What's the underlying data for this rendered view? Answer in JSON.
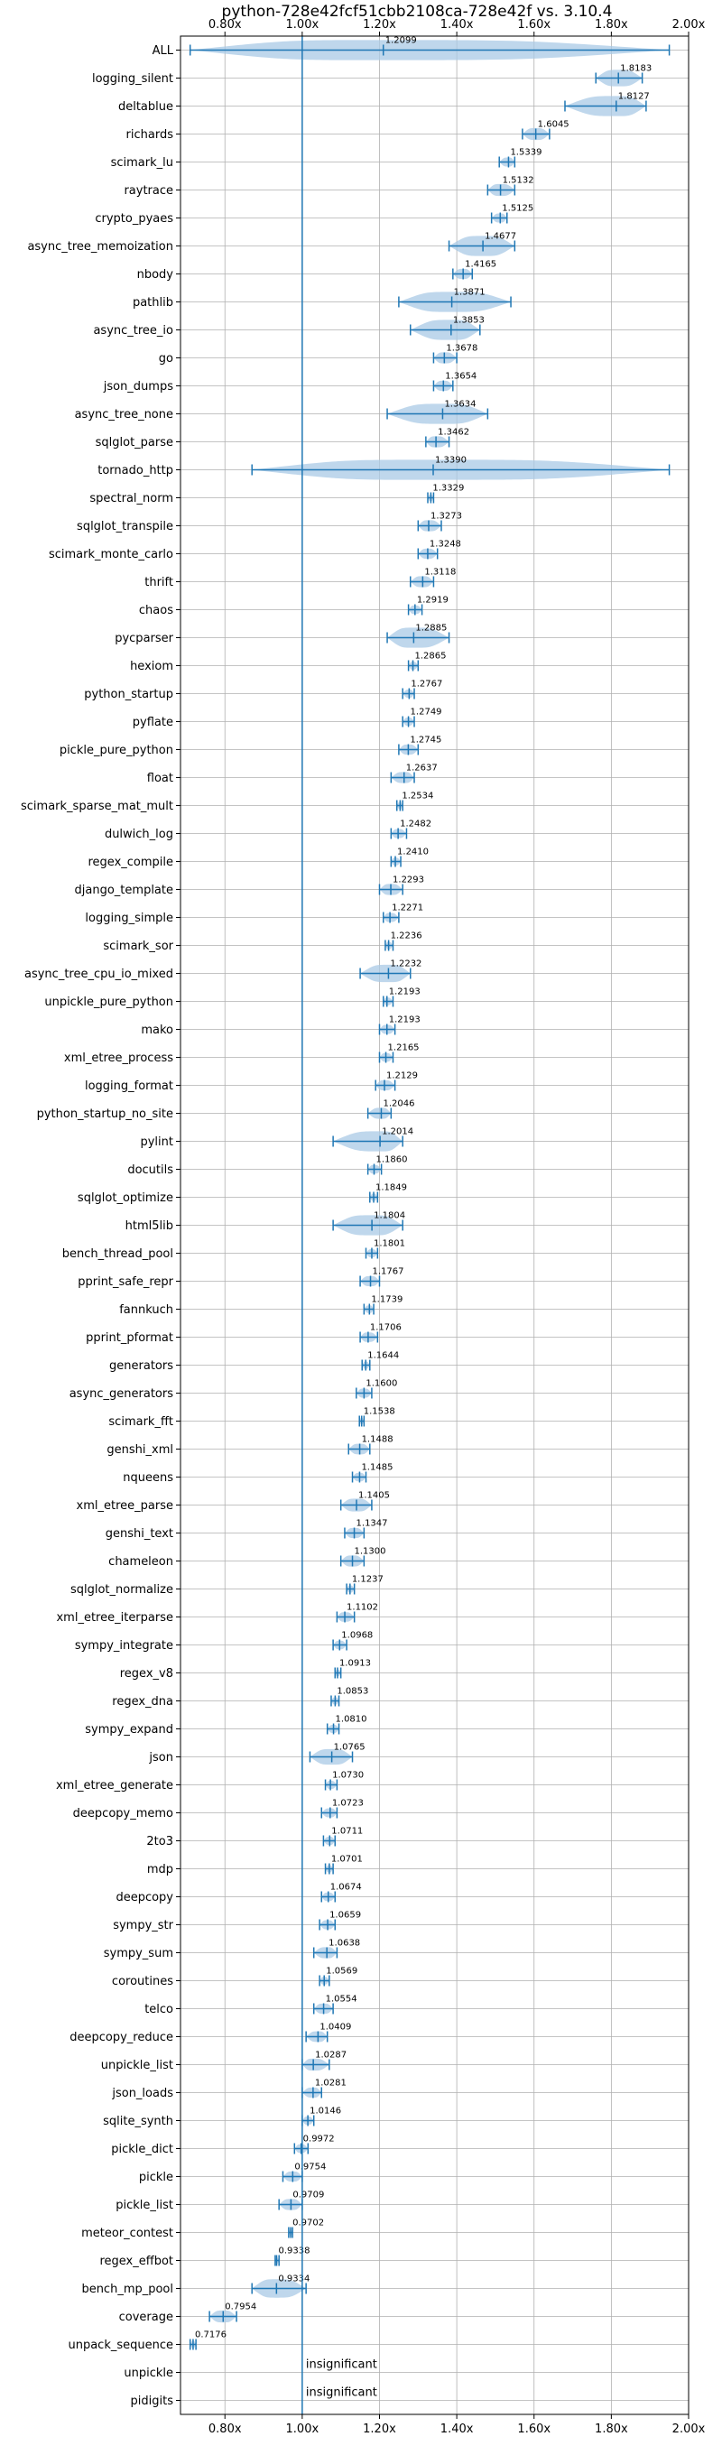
{
  "chart_data": {
    "type": "violin",
    "title": "python-728e42fcf51cbb2108ca-728e42f vs. 3.10.4",
    "x_ticks": [
      "0.80x",
      "1.00x",
      "1.20x",
      "1.40x",
      "1.60x",
      "1.80x",
      "2.00x"
    ],
    "xlim": [
      0.685,
      2.0
    ],
    "reference_line": 1.0,
    "grid": true,
    "colors": {
      "accent": "#1f77b4",
      "violin_fill": "#a9c9e5"
    },
    "benchmarks": [
      {
        "name": "ALL",
        "value": 1.2099,
        "label": "1.2099",
        "min": 0.71,
        "max": 1.95
      },
      {
        "name": "logging_silent",
        "value": 1.8183,
        "label": "1.8183",
        "min": 1.76,
        "max": 1.88
      },
      {
        "name": "deltablue",
        "value": 1.8127,
        "label": "1.8127",
        "min": 1.68,
        "max": 1.89
      },
      {
        "name": "richards",
        "value": 1.6045,
        "label": "1.6045",
        "min": 1.57,
        "max": 1.64
      },
      {
        "name": "scimark_lu",
        "value": 1.5339,
        "label": "1.5339",
        "min": 1.51,
        "max": 1.55
      },
      {
        "name": "raytrace",
        "value": 1.5132,
        "label": "1.5132",
        "min": 1.48,
        "max": 1.55
      },
      {
        "name": "crypto_pyaes",
        "value": 1.5125,
        "label": "1.5125",
        "min": 1.49,
        "max": 1.53
      },
      {
        "name": "async_tree_memoization",
        "value": 1.4677,
        "label": "1.4677",
        "min": 1.38,
        "max": 1.55
      },
      {
        "name": "nbody",
        "value": 1.4165,
        "label": "1.4165",
        "min": 1.39,
        "max": 1.44
      },
      {
        "name": "pathlib",
        "value": 1.3871,
        "label": "1.3871",
        "min": 1.25,
        "max": 1.54
      },
      {
        "name": "async_tree_io",
        "value": 1.3853,
        "label": "1.3853",
        "min": 1.28,
        "max": 1.46
      },
      {
        "name": "go",
        "value": 1.3678,
        "label": "1.3678",
        "min": 1.34,
        "max": 1.4
      },
      {
        "name": "json_dumps",
        "value": 1.3654,
        "label": "1.3654",
        "min": 1.34,
        "max": 1.39
      },
      {
        "name": "async_tree_none",
        "value": 1.3634,
        "label": "1.3634",
        "min": 1.22,
        "max": 1.48
      },
      {
        "name": "sqlglot_parse",
        "value": 1.3462,
        "label": "1.3462",
        "min": 1.32,
        "max": 1.38
      },
      {
        "name": "tornado_http",
        "value": 1.339,
        "label": "1.3390",
        "min": 0.87,
        "max": 1.95
      },
      {
        "name": "spectral_norm",
        "value": 1.3329,
        "label": "1.3329",
        "min": 1.325,
        "max": 1.34
      },
      {
        "name": "sqlglot_transpile",
        "value": 1.3273,
        "label": "1.3273",
        "min": 1.3,
        "max": 1.36
      },
      {
        "name": "scimark_monte_carlo",
        "value": 1.3248,
        "label": "1.3248",
        "min": 1.3,
        "max": 1.35
      },
      {
        "name": "thrift",
        "value": 1.3118,
        "label": "1.3118",
        "min": 1.28,
        "max": 1.34
      },
      {
        "name": "chaos",
        "value": 1.2919,
        "label": "1.2919",
        "min": 1.275,
        "max": 1.31
      },
      {
        "name": "pycparser",
        "value": 1.2885,
        "label": "1.2885",
        "min": 1.22,
        "max": 1.38
      },
      {
        "name": "hexiom",
        "value": 1.2865,
        "label": "1.2865",
        "min": 1.275,
        "max": 1.3
      },
      {
        "name": "python_startup",
        "value": 1.2767,
        "label": "1.2767",
        "min": 1.26,
        "max": 1.29
      },
      {
        "name": "pyflate",
        "value": 1.2749,
        "label": "1.2749",
        "min": 1.26,
        "max": 1.29
      },
      {
        "name": "pickle_pure_python",
        "value": 1.2745,
        "label": "1.2745",
        "min": 1.25,
        "max": 1.3
      },
      {
        "name": "float",
        "value": 1.2637,
        "label": "1.2637",
        "min": 1.23,
        "max": 1.29
      },
      {
        "name": "scimark_sparse_mat_mult",
        "value": 1.2534,
        "label": "1.2534",
        "min": 1.245,
        "max": 1.26
      },
      {
        "name": "dulwich_log",
        "value": 1.2482,
        "label": "1.2482",
        "min": 1.23,
        "max": 1.27
      },
      {
        "name": "regex_compile",
        "value": 1.241,
        "label": "1.2410",
        "min": 1.23,
        "max": 1.255
      },
      {
        "name": "django_template",
        "value": 1.2293,
        "label": "1.2293",
        "min": 1.2,
        "max": 1.26
      },
      {
        "name": "logging_simple",
        "value": 1.2271,
        "label": "1.2271",
        "min": 1.21,
        "max": 1.25
      },
      {
        "name": "scimark_sor",
        "value": 1.2236,
        "label": "1.2236",
        "min": 1.215,
        "max": 1.235
      },
      {
        "name": "async_tree_cpu_io_mixed",
        "value": 1.2232,
        "label": "1.2232",
        "min": 1.15,
        "max": 1.28
      },
      {
        "name": "unpickle_pure_python",
        "value": 1.2193,
        "label": "1.2193",
        "min": 1.21,
        "max": 1.235
      },
      {
        "name": "mako",
        "value": 1.2193,
        "label": "1.2193",
        "min": 1.2,
        "max": 1.24
      },
      {
        "name": "xml_etree_process",
        "value": 1.2165,
        "label": "1.2165",
        "min": 1.2,
        "max": 1.235
      },
      {
        "name": "logging_format",
        "value": 1.2129,
        "label": "1.2129",
        "min": 1.19,
        "max": 1.24
      },
      {
        "name": "python_startup_no_site",
        "value": 1.2046,
        "label": "1.2046",
        "min": 1.17,
        "max": 1.23
      },
      {
        "name": "pylint",
        "value": 1.2014,
        "label": "1.2014",
        "min": 1.08,
        "max": 1.26
      },
      {
        "name": "docutils",
        "value": 1.186,
        "label": "1.1860",
        "min": 1.17,
        "max": 1.205
      },
      {
        "name": "sqlglot_optimize",
        "value": 1.1849,
        "label": "1.1849",
        "min": 1.175,
        "max": 1.195
      },
      {
        "name": "html5lib",
        "value": 1.1804,
        "label": "1.1804",
        "min": 1.08,
        "max": 1.26
      },
      {
        "name": "bench_thread_pool",
        "value": 1.1801,
        "label": "1.1801",
        "min": 1.165,
        "max": 1.195
      },
      {
        "name": "pprint_safe_repr",
        "value": 1.1767,
        "label": "1.1767",
        "min": 1.15,
        "max": 1.2
      },
      {
        "name": "fannkuch",
        "value": 1.1739,
        "label": "1.1739",
        "min": 1.16,
        "max": 1.185
      },
      {
        "name": "pprint_pformat",
        "value": 1.1706,
        "label": "1.1706",
        "min": 1.15,
        "max": 1.195
      },
      {
        "name": "generators",
        "value": 1.1644,
        "label": "1.1644",
        "min": 1.155,
        "max": 1.175
      },
      {
        "name": "async_generators",
        "value": 1.16,
        "label": "1.1600",
        "min": 1.14,
        "max": 1.18
      },
      {
        "name": "scimark_fft",
        "value": 1.1538,
        "label": "1.1538",
        "min": 1.148,
        "max": 1.16
      },
      {
        "name": "genshi_xml",
        "value": 1.1488,
        "label": "1.1488",
        "min": 1.12,
        "max": 1.175
      },
      {
        "name": "nqueens",
        "value": 1.1485,
        "label": "1.1485",
        "min": 1.13,
        "max": 1.165
      },
      {
        "name": "xml_etree_parse",
        "value": 1.1405,
        "label": "1.1405",
        "min": 1.1,
        "max": 1.18
      },
      {
        "name": "genshi_text",
        "value": 1.1347,
        "label": "1.1347",
        "min": 1.11,
        "max": 1.16
      },
      {
        "name": "chameleon",
        "value": 1.13,
        "label": "1.1300",
        "min": 1.1,
        "max": 1.16
      },
      {
        "name": "sqlglot_normalize",
        "value": 1.1237,
        "label": "1.1237",
        "min": 1.115,
        "max": 1.135
      },
      {
        "name": "xml_etree_iterparse",
        "value": 1.1102,
        "label": "1.1102",
        "min": 1.09,
        "max": 1.135
      },
      {
        "name": "sympy_integrate",
        "value": 1.0968,
        "label": "1.0968",
        "min": 1.08,
        "max": 1.115
      },
      {
        "name": "regex_v8",
        "value": 1.0913,
        "label": "1.0913",
        "min": 1.085,
        "max": 1.1
      },
      {
        "name": "regex_dna",
        "value": 1.0853,
        "label": "1.0853",
        "min": 1.075,
        "max": 1.095
      },
      {
        "name": "sympy_expand",
        "value": 1.081,
        "label": "1.0810",
        "min": 1.065,
        "max": 1.095
      },
      {
        "name": "json",
        "value": 1.0765,
        "label": "1.0765",
        "min": 1.02,
        "max": 1.13
      },
      {
        "name": "xml_etree_generate",
        "value": 1.073,
        "label": "1.0730",
        "min": 1.06,
        "max": 1.09
      },
      {
        "name": "deepcopy_memo",
        "value": 1.0723,
        "label": "1.0723",
        "min": 1.05,
        "max": 1.09
      },
      {
        "name": "2to3",
        "value": 1.0711,
        "label": "1.0711",
        "min": 1.055,
        "max": 1.085
      },
      {
        "name": "mdp",
        "value": 1.0701,
        "label": "1.0701",
        "min": 1.06,
        "max": 1.08
      },
      {
        "name": "deepcopy",
        "value": 1.0674,
        "label": "1.0674",
        "min": 1.05,
        "max": 1.085
      },
      {
        "name": "sympy_str",
        "value": 1.0659,
        "label": "1.0659",
        "min": 1.045,
        "max": 1.085
      },
      {
        "name": "sympy_sum",
        "value": 1.0638,
        "label": "1.0638",
        "min": 1.03,
        "max": 1.09
      },
      {
        "name": "coroutines",
        "value": 1.0569,
        "label": "1.0569",
        "min": 1.045,
        "max": 1.07
      },
      {
        "name": "telco",
        "value": 1.0554,
        "label": "1.0554",
        "min": 1.03,
        "max": 1.08
      },
      {
        "name": "deepcopy_reduce",
        "value": 1.0409,
        "label": "1.0409",
        "min": 1.01,
        "max": 1.065
      },
      {
        "name": "unpickle_list",
        "value": 1.0287,
        "label": "1.0287",
        "min": 1.0,
        "max": 1.07
      },
      {
        "name": "json_loads",
        "value": 1.0281,
        "label": "1.0281",
        "min": 1.0,
        "max": 1.05
      },
      {
        "name": "sqlite_synth",
        "value": 1.0146,
        "label": "1.0146",
        "min": 1.0,
        "max": 1.03
      },
      {
        "name": "pickle_dict",
        "value": 0.9972,
        "label": "0.9972",
        "min": 0.98,
        "max": 1.015
      },
      {
        "name": "pickle",
        "value": 0.9754,
        "label": "0.9754",
        "min": 0.95,
        "max": 1.0
      },
      {
        "name": "pickle_list",
        "value": 0.9709,
        "label": "0.9709",
        "min": 0.94,
        "max": 1.0
      },
      {
        "name": "meteor_contest",
        "value": 0.9702,
        "label": "0.9702",
        "min": 0.965,
        "max": 0.975
      },
      {
        "name": "regex_effbot",
        "value": 0.9338,
        "label": "0.9338",
        "min": 0.93,
        "max": 0.94
      },
      {
        "name": "bench_mp_pool",
        "value": 0.9334,
        "label": "0.9334",
        "min": 0.87,
        "max": 1.01
      },
      {
        "name": "coverage",
        "value": 0.7954,
        "label": "0.7954",
        "min": 0.76,
        "max": 0.83
      },
      {
        "name": "unpack_sequence",
        "value": 0.7176,
        "label": "0.7176",
        "min": 0.71,
        "max": 0.725
      },
      {
        "name": "unpickle",
        "value": null,
        "label": "insignificant"
      },
      {
        "name": "pidigits",
        "value": null,
        "label": "insignificant"
      }
    ]
  }
}
